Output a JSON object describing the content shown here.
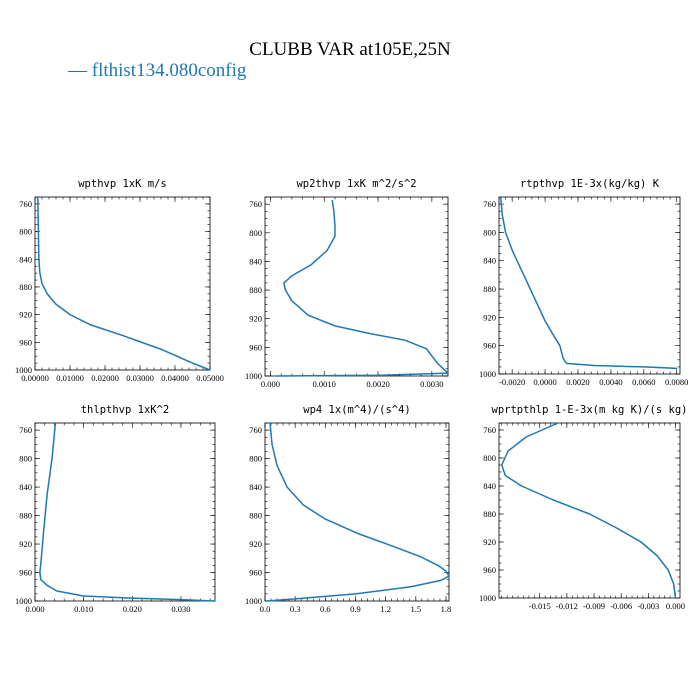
{
  "title": "CLUBB VAR at105E,25N",
  "legend": {
    "label": "— flthist134.080config",
    "color": "#1f77b4"
  },
  "chart_data": [
    {
      "type": "line",
      "title": "wpthvp  1xK m/s",
      "xlim": [
        0,
        0.05
      ],
      "ylim": [
        1000,
        750
      ],
      "xticks": [
        0,
        0.01,
        0.02,
        0.03,
        0.04,
        0.05
      ],
      "xtick_labels": [
        "0.00000",
        "0.01000",
        "0.02000",
        "0.03000",
        "0.04000",
        "0.05000"
      ],
      "yticks": [
        760,
        800,
        840,
        880,
        920,
        960,
        1000
      ],
      "ytick_labels": [
        "760",
        "800",
        "840",
        "880",
        "920",
        "960",
        "1000"
      ],
      "series": [
        {
          "color": "#1f77b4",
          "x": [
            0.0008,
            0.0009,
            0.001,
            0.0011,
            0.0014,
            0.002,
            0.0035,
            0.006,
            0.01,
            0.016,
            0.025,
            0.036,
            0.045,
            0.05
          ],
          "y": [
            750,
            780,
            810,
            840,
            860,
            875,
            890,
            905,
            920,
            935,
            950,
            970,
            990,
            1000
          ]
        }
      ]
    },
    {
      "type": "line",
      "title": "wp2thvp  1xK m^2/s^2",
      "xlim": [
        -0.0001,
        0.0033
      ],
      "ylim": [
        1000,
        750
      ],
      "xticks": [
        0,
        0.001,
        0.002,
        0.003
      ],
      "xtick_labels": [
        "0.000",
        "0.0010",
        "0.0020",
        "0.0030"
      ],
      "yticks": [
        760,
        800,
        840,
        880,
        920,
        960,
        1000
      ],
      "ytick_labels": [
        "760",
        "800",
        "840",
        "880",
        "920",
        "960",
        "1000"
      ],
      "series": [
        {
          "color": "#1f77b4",
          "x": [
            0.00115,
            0.00118,
            0.0012,
            0.0012,
            0.00105,
            0.00075,
            0.0004,
            0.00025,
            0.00028,
            0.0004,
            0.0007,
            0.0012,
            0.0018,
            0.0025,
            0.0029,
            0.0031,
            0.0033,
            0.002,
            0.0001
          ],
          "y": [
            755,
            770,
            790,
            805,
            825,
            845,
            860,
            870,
            880,
            895,
            915,
            930,
            940,
            950,
            962,
            982,
            996,
            999,
            1000
          ]
        }
      ]
    },
    {
      "type": "line",
      "title": "rtpthvp  1E-3x(kg/kg) K",
      "xlim": [
        -0.0028,
        0.0082
      ],
      "ylim": [
        1000,
        750
      ],
      "xticks": [
        -0.002,
        0,
        0.002,
        0.004,
        0.006,
        0.008
      ],
      "xtick_labels": [
        "-0.0020",
        "0.0000",
        "0.0020",
        "0.0040",
        "0.0060",
        "0.0080"
      ],
      "yticks": [
        760,
        800,
        840,
        880,
        920,
        960,
        1000
      ],
      "ytick_labels": [
        "760",
        "800",
        "840",
        "880",
        "920",
        "960",
        "1000"
      ],
      "series": [
        {
          "color": "#1f77b4",
          "x": [
            -0.0027,
            -0.0026,
            -0.0024,
            -0.002,
            -0.0015,
            -0.001,
            -0.0005,
            0,
            0.0005,
            0.0009,
            0.0011,
            0.0013,
            0.003,
            0.006,
            0.008
          ],
          "y": [
            750,
            775,
            800,
            825,
            850,
            875,
            900,
            925,
            945,
            960,
            978,
            985,
            988,
            990,
            992
          ]
        }
      ]
    },
    {
      "type": "line",
      "title": "thlpthvp  1xK^2",
      "xlim": [
        0,
        0.037
      ],
      "ylim": [
        1000,
        750
      ],
      "xticks": [
        0,
        0.01,
        0.02,
        0.03
      ],
      "xtick_labels": [
        "0.000",
        "0.010",
        "0.020",
        "0.030"
      ],
      "yticks": [
        760,
        800,
        840,
        880,
        920,
        960,
        1000
      ],
      "ytick_labels": [
        "760",
        "800",
        "840",
        "880",
        "920",
        "960",
        "1000"
      ],
      "series": [
        {
          "color": "#1f77b4",
          "x": [
            0.0042,
            0.0035,
            0.0025,
            0.0018,
            0.0013,
            0.001,
            0.0012,
            0.0025,
            0.0045,
            0.01,
            0.02,
            0.03,
            0.037
          ],
          "y": [
            750,
            800,
            850,
            900,
            940,
            960,
            970,
            978,
            986,
            993,
            996,
            998,
            1000
          ]
        }
      ]
    },
    {
      "type": "line",
      "title": "wp4  1x(m^4)/(s^4)",
      "xlim": [
        0,
        1.83
      ],
      "ylim": [
        1000,
        750
      ],
      "xticks": [
        0,
        0.3,
        0.6,
        0.9,
        1.2,
        1.5,
        1.8
      ],
      "xtick_labels": [
        "0.0",
        "0.3",
        "0.6",
        "0.9",
        "1.2",
        "1.5",
        "1.8"
      ],
      "yticks": [
        760,
        800,
        840,
        880,
        920,
        960,
        1000
      ],
      "ytick_labels": [
        "760",
        "800",
        "840",
        "880",
        "920",
        "960",
        "1000"
      ],
      "series": [
        {
          "color": "#1f77b4",
          "x": [
            0.05,
            0.07,
            0.12,
            0.22,
            0.38,
            0.6,
            0.92,
            1.25,
            1.55,
            1.72,
            1.8,
            1.83,
            1.75,
            1.45,
            0.9,
            0.3,
            0.02
          ],
          "y": [
            750,
            780,
            810,
            840,
            865,
            885,
            905,
            922,
            938,
            950,
            958,
            965,
            971,
            980,
            990,
            997,
            1000
          ]
        }
      ]
    },
    {
      "type": "line",
      "title": "wprtpthlp  1-E-3x(m kg K)/(s kg)",
      "xlim": [
        -0.0195,
        0.0005
      ],
      "ylim": [
        1000,
        750
      ],
      "xticks": [
        -0.015,
        -0.012,
        -0.009,
        -0.006,
        -0.003,
        0
      ],
      "xtick_labels": [
        "-0.015",
        "-0.012",
        "-0.009",
        "-0.006",
        "-0.003",
        "0.000"
      ],
      "yticks": [
        760,
        800,
        840,
        880,
        920,
        960,
        1000
      ],
      "ytick_labels": [
        "760",
        "800",
        "840",
        "880",
        "920",
        "960",
        "1000"
      ],
      "series": [
        {
          "color": "#1f77b4",
          "x": [
            -0.013,
            -0.0165,
            -0.0185,
            -0.0192,
            -0.0188,
            -0.017,
            -0.0135,
            -0.0095,
            -0.0065,
            -0.0038,
            -0.002,
            -0.0008,
            -0.0002,
            0
          ],
          "y": [
            750,
            770,
            790,
            810,
            825,
            840,
            860,
            880,
            900,
            920,
            940,
            960,
            980,
            1000
          ]
        }
      ]
    }
  ]
}
